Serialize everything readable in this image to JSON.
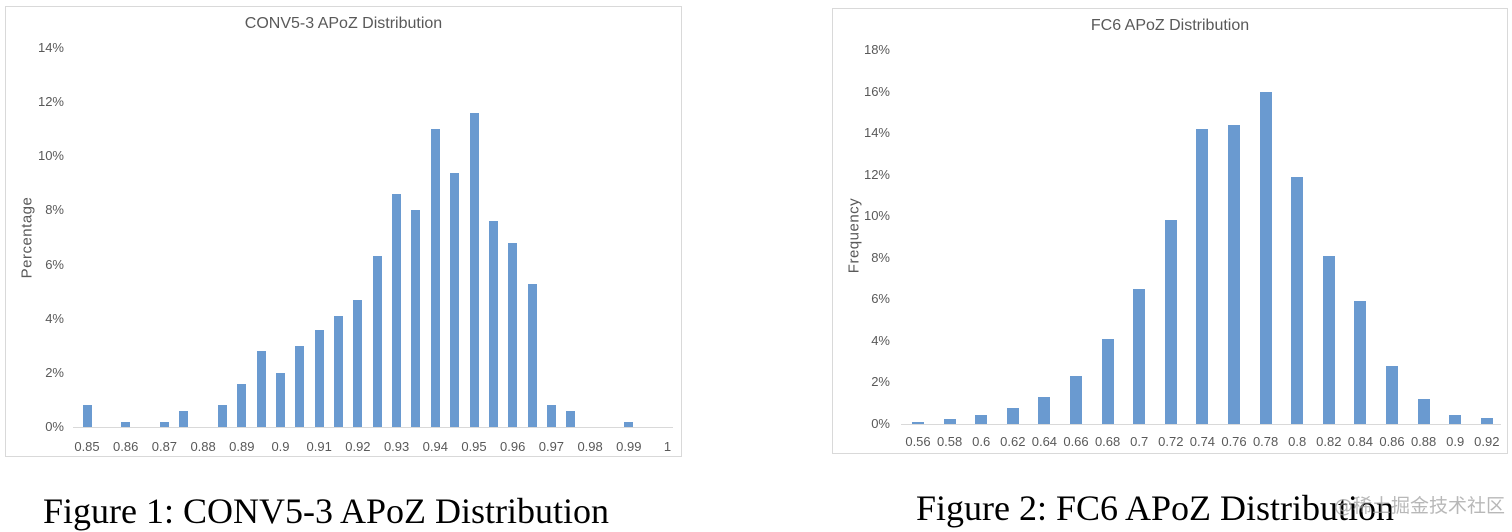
{
  "chart_data": [
    {
      "type": "bar",
      "title": "CONV5-3 APoZ Distribution",
      "xlabel": "",
      "ylabel": "Percentage",
      "ylim": [
        0,
        14
      ],
      "y_ticks": [
        "0%",
        "2%",
        "4%",
        "6%",
        "8%",
        "10%",
        "12%",
        "14%"
      ],
      "x_tick_labels": [
        "0.85",
        "0.86",
        "0.87",
        "0.88",
        "0.89",
        "0.9",
        "0.91",
        "0.92",
        "0.93",
        "0.94",
        "0.95",
        "0.96",
        "0.97",
        "0.98",
        "0.99",
        "1"
      ],
      "categories": [
        "0.85",
        "0.855",
        "0.86",
        "0.865",
        "0.87",
        "0.875",
        "0.88",
        "0.885",
        "0.89",
        "0.895",
        "0.9",
        "0.905",
        "0.91",
        "0.915",
        "0.92",
        "0.925",
        "0.93",
        "0.935",
        "0.94",
        "0.945",
        "0.95",
        "0.955",
        "0.96",
        "0.965",
        "0.97",
        "0.975",
        "0.98",
        "0.985",
        "0.99",
        "0.995",
        "1"
      ],
      "values": [
        0.8,
        0,
        0.2,
        0,
        0.2,
        0.6,
        0,
        0.8,
        1.6,
        2.8,
        2.0,
        3.0,
        3.6,
        4.1,
        4.7,
        6.3,
        8.6,
        8.0,
        11.0,
        9.4,
        11.6,
        7.6,
        6.8,
        5.3,
        0.8,
        0.6,
        0,
        0,
        0.2,
        0,
        0
      ],
      "unit": "%",
      "grid": false,
      "legend": "none",
      "bar_color": "#6a9ad0"
    },
    {
      "type": "bar",
      "title": "FC6 APoZ Distribution",
      "xlabel": "",
      "ylabel": "Frequency",
      "ylim": [
        0,
        18
      ],
      "y_ticks": [
        "0%",
        "2%",
        "4%",
        "6%",
        "8%",
        "10%",
        "12%",
        "14%",
        "16%",
        "18%"
      ],
      "x_tick_labels": [
        "0.56",
        "0.58",
        "0.6",
        "0.62",
        "0.64",
        "0.66",
        "0.68",
        "0.7",
        "0.72",
        "0.74",
        "0.76",
        "0.78",
        "0.8",
        "0.82",
        "0.84",
        "0.86",
        "0.88",
        "0.9",
        "0.92"
      ],
      "categories": [
        "0.56",
        "0.58",
        "0.6",
        "0.62",
        "0.64",
        "0.66",
        "0.68",
        "0.7",
        "0.72",
        "0.74",
        "0.76",
        "0.78",
        "0.8",
        "0.82",
        "0.84",
        "0.86",
        "0.88",
        "0.9",
        "0.92"
      ],
      "values": [
        0.1,
        0.25,
        0.45,
        0.75,
        1.3,
        2.3,
        4.1,
        6.5,
        9.8,
        14.2,
        14.4,
        16.0,
        11.9,
        8.1,
        5.9,
        2.8,
        1.2,
        0.45,
        0.3
      ],
      "unit": "%",
      "grid": false,
      "legend": "none",
      "bar_color": "#6a9ad0"
    }
  ],
  "figures": [
    {
      "caption": "Figure 1: CONV5-3 APoZ Distribution"
    },
    {
      "caption": "Figure 2: FC6 APoZ Distribution"
    }
  ],
  "watermark": "@稀土掘金技术社区"
}
